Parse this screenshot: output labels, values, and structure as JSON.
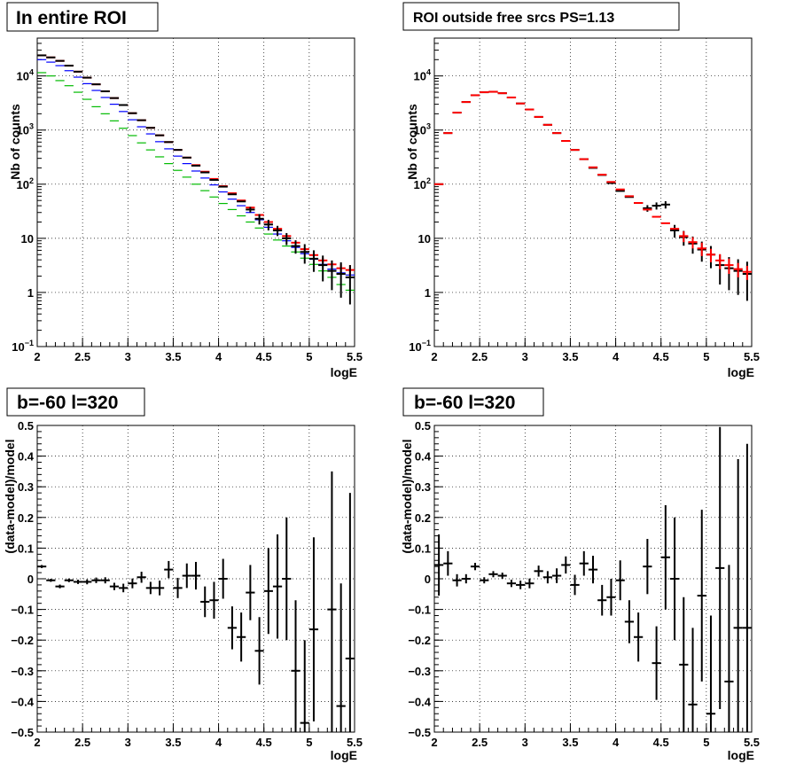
{
  "chart_data": [
    {
      "type": "scatter",
      "title": "In entire ROI",
      "xlabel": "logE",
      "ylabel": "Nb of counts",
      "xlim": [
        2,
        5.5
      ],
      "ylim": [
        0.1,
        50000
      ],
      "yscale": "log",
      "grid": true,
      "x_ticks": [
        "2",
        "2.5",
        "3",
        "3.5",
        "4",
        "4.5",
        "5",
        "5.5"
      ],
      "y_ticks": [
        {
          "value": 0.1,
          "base": "10",
          "exp": "−1"
        },
        {
          "value": 1,
          "label": "1"
        },
        {
          "value": 10,
          "label": "10"
        },
        {
          "value": 100,
          "base": "10",
          "exp": "2"
        },
        {
          "value": 1000,
          "base": "10",
          "exp": "3"
        },
        {
          "value": 10000,
          "base": "10",
          "exp": "4"
        }
      ],
      "series": [
        {
          "color": "#ff0000",
          "x": [
            2.05,
            2.15,
            2.25,
            2.35,
            2.45,
            2.55,
            2.65,
            2.75,
            2.85,
            2.95,
            3.05,
            3.15,
            3.25,
            3.35,
            3.45,
            3.55,
            3.65,
            3.75,
            3.85,
            3.95,
            4.05,
            4.15,
            4.25,
            4.35,
            4.45,
            4.55,
            4.65,
            4.75,
            4.85,
            4.95,
            5.05,
            5.15,
            5.25,
            5.35,
            5.45
          ],
          "y": [
            24000,
            22000,
            19000,
            15500,
            12000,
            9300,
            7000,
            5200,
            3900,
            2900,
            2050,
            1520,
            1100,
            800,
            600,
            430,
            310,
            225,
            170,
            125,
            92,
            68,
            50,
            37,
            27,
            20,
            15,
            11,
            8.3,
            6.3,
            4.9,
            3.9,
            3.3,
            2.8,
            2.6
          ],
          "err": [
            0,
            0,
            0,
            0,
            0,
            0,
            0,
            0,
            0,
            0,
            0,
            0,
            0,
            0,
            0,
            0,
            0,
            0,
            0,
            0,
            0,
            0,
            0,
            0,
            0,
            0,
            0,
            0,
            0.25,
            0.35,
            0.4,
            0.45,
            0.5,
            0.55,
            0.6
          ]
        },
        {
          "color": "#0000ff",
          "x": [
            2.05,
            2.15,
            2.25,
            2.35,
            2.45,
            2.55,
            2.65,
            2.75,
            2.85,
            2.95,
            3.05,
            3.15,
            3.25,
            3.35,
            3.45,
            3.55,
            3.65,
            3.75,
            3.85,
            3.95,
            4.05,
            4.15,
            4.25,
            4.35,
            4.45,
            4.55,
            4.65,
            4.75,
            4.85,
            4.95,
            5.05,
            5.15,
            5.25,
            5.35,
            5.45
          ],
          "y": [
            20000,
            18000,
            15500,
            12500,
            9500,
            7200,
            5400,
            4000,
            3000,
            2200,
            1550,
            1150,
            850,
            610,
            450,
            330,
            240,
            175,
            130,
            97,
            72,
            53,
            40,
            30,
            22,
            16,
            12,
            9,
            6.8,
            5.2,
            4.1,
            3.3,
            2.7,
            2.3,
            2.1
          ],
          "err": [
            0,
            0,
            0,
            0,
            0,
            0,
            0,
            0,
            0,
            0,
            0,
            0,
            0,
            0,
            0,
            0,
            0,
            0,
            0,
            0,
            0,
            0,
            0,
            0,
            0,
            0,
            0,
            0,
            0,
            0,
            0,
            0,
            0,
            0,
            0
          ]
        },
        {
          "color": "#00bb00",
          "x": [
            2.05,
            2.15,
            2.25,
            2.35,
            2.45,
            2.55,
            2.65,
            2.75,
            2.85,
            2.95,
            3.05,
            3.15,
            3.25,
            3.35,
            3.45,
            3.55,
            3.65,
            3.75,
            3.85,
            3.95,
            4.05,
            4.15,
            4.25,
            4.35,
            4.45,
            4.55,
            4.65,
            4.75,
            4.85,
            4.95,
            5.05,
            5.15,
            5.25,
            5.35,
            5.45
          ],
          "y": [
            11500,
            10000,
            8200,
            6600,
            5000,
            3700,
            2700,
            2000,
            1480,
            1080,
            790,
            580,
            430,
            320,
            240,
            180,
            135,
            100,
            76,
            58,
            44,
            34,
            26,
            20,
            15.5,
            12,
            9.3,
            7.2,
            5.6,
            4.3,
            3.3,
            2.5,
            1.9,
            1.4,
            1.1
          ],
          "err": [
            0,
            0,
            0,
            0,
            0,
            0,
            0,
            0,
            0,
            0,
            0,
            0,
            0,
            0,
            0,
            0,
            0,
            0,
            0,
            0,
            0,
            0,
            0,
            0,
            0,
            0,
            0,
            0,
            0,
            0,
            0,
            0,
            0,
            0,
            0
          ]
        },
        {
          "color": "#000000",
          "x": [
            2.05,
            2.15,
            2.25,
            2.35,
            2.45,
            2.55,
            2.65,
            2.75,
            2.85,
            2.95,
            3.05,
            3.15,
            3.25,
            3.35,
            3.45,
            3.55,
            3.65,
            3.75,
            3.85,
            3.95,
            4.05,
            4.15,
            4.25,
            4.35,
            4.45,
            4.55,
            4.65,
            4.75,
            4.85,
            4.95,
            5.05,
            5.15,
            5.25,
            5.35,
            5.45
          ],
          "y": [
            24000,
            22000,
            19000,
            15500,
            12000,
            9300,
            7000,
            5200,
            3900,
            2900,
            2050,
            1520,
            1100,
            800,
            600,
            430,
            310,
            220,
            165,
            120,
            90,
            65,
            48,
            34,
            23,
            18,
            14,
            10,
            7.2,
            5.6,
            4.2,
            3.2,
            2.5,
            2.2,
            1.9
          ],
          "err": [
            0,
            0,
            0,
            0,
            0,
            0,
            0,
            0,
            0,
            0,
            0,
            0,
            0,
            0,
            0,
            0,
            0,
            0,
            0,
            0,
            0,
            0,
            0,
            4,
            5,
            4,
            3,
            2.5,
            2,
            2.2,
            1.8,
            1.6,
            1.4,
            1.4,
            1.3
          ]
        }
      ]
    },
    {
      "type": "scatter",
      "title": "ROI outside free srcs PS=1.13",
      "xlabel": "logE",
      "ylabel": "Nb of counts",
      "xlim": [
        2,
        5.5
      ],
      "ylim": [
        0.1,
        50000
      ],
      "yscale": "log",
      "grid": true,
      "x_ticks": [
        "2",
        "2.5",
        "3",
        "3.5",
        "4",
        "4.5",
        "5",
        "5.5"
      ],
      "y_ticks": [
        {
          "value": 0.1,
          "base": "10",
          "exp": "−1"
        },
        {
          "value": 1,
          "label": "1"
        },
        {
          "value": 10,
          "label": "10"
        },
        {
          "value": 100,
          "base": "10",
          "exp": "2"
        },
        {
          "value": 1000,
          "base": "10",
          "exp": "3"
        },
        {
          "value": 10000,
          "base": "10",
          "exp": "4"
        }
      ],
      "series": [
        {
          "color": "#000000",
          "x": [
            2.05,
            2.15,
            2.25,
            2.35,
            2.45,
            2.55,
            2.65,
            2.75,
            2.85,
            2.95,
            3.05,
            3.15,
            3.25,
            3.35,
            3.45,
            3.55,
            3.65,
            3.75,
            3.85,
            3.95,
            4.05,
            4.15,
            4.25,
            4.35,
            4.45,
            4.55,
            4.65,
            4.75,
            4.85,
            4.95,
            5.05,
            5.15,
            5.25,
            5.35,
            5.45
          ],
          "y": [
            100,
            880,
            2100,
            3300,
            4400,
            5000,
            5100,
            4800,
            4000,
            3100,
            2400,
            1750,
            1250,
            880,
            630,
            430,
            290,
            200,
            148,
            105,
            75,
            58,
            45,
            36,
            40,
            42,
            14,
            10.5,
            8,
            6.2,
            5,
            3.2,
            2.8,
            2.5,
            2.2
          ],
          "err": [
            0,
            0,
            0,
            0,
            0,
            0,
            0,
            0,
            0,
            0,
            0,
            0,
            0,
            0,
            0,
            0,
            0,
            0,
            0,
            0,
            0,
            0,
            0,
            5,
            6,
            6.5,
            3.7,
            3.2,
            2.8,
            2.5,
            2.2,
            1.8,
            1.7,
            1.6,
            1.5
          ]
        },
        {
          "color": "#ff0000",
          "x": [
            2.05,
            2.15,
            2.25,
            2.35,
            2.45,
            2.55,
            2.65,
            2.75,
            2.85,
            2.95,
            3.05,
            3.15,
            3.25,
            3.35,
            3.45,
            3.55,
            3.65,
            3.75,
            3.85,
            3.95,
            4.05,
            4.15,
            4.25,
            4.35,
            4.45,
            4.55,
            4.65,
            4.75,
            4.85,
            4.95,
            5.05,
            5.15,
            5.25,
            5.35,
            5.45
          ],
          "y": [
            100,
            880,
            2100,
            3300,
            4400,
            5000,
            5100,
            4800,
            4000,
            3100,
            2400,
            1750,
            1250,
            880,
            630,
            430,
            290,
            205,
            150,
            110,
            80,
            60,
            45,
            34,
            25,
            19,
            15,
            11,
            8.5,
            6.5,
            5,
            3.9,
            3.2,
            2.7,
            2.4
          ],
          "err": [
            0,
            0,
            0,
            0,
            0,
            0,
            0,
            0,
            0,
            0,
            0,
            0,
            0,
            0,
            0,
            0,
            0,
            0,
            0,
            0,
            0,
            0,
            0,
            0,
            0,
            0,
            0,
            2.5,
            2,
            1.8,
            1.4,
            1.2,
            1,
            0.8,
            0.7
          ]
        }
      ]
    },
    {
      "type": "scatter",
      "title": "b=-60 l=320",
      "xlabel": "logE",
      "ylabel": "(data-model)/model",
      "xlim": [
        2,
        5.5
      ],
      "ylim": [
        -0.5,
        0.5
      ],
      "yscale": "linear",
      "grid": true,
      "x_ticks": [
        "2",
        "2.5",
        "3",
        "3.5",
        "4",
        "4.5",
        "5",
        "5.5"
      ],
      "y_ticks": [
        "−0.5",
        "−0.4",
        "−0.3",
        "−0.2",
        "−0.1",
        "0",
        "0.1",
        "0.2",
        "0.3",
        "0.4",
        "0.5"
      ],
      "series": [
        {
          "color": "#000000",
          "x": [
            2.05,
            2.15,
            2.25,
            2.35,
            2.45,
            2.55,
            2.65,
            2.75,
            2.85,
            2.95,
            3.05,
            3.15,
            3.25,
            3.35,
            3.45,
            3.55,
            3.65,
            3.75,
            3.85,
            3.95,
            4.05,
            4.15,
            4.25,
            4.35,
            4.45,
            4.55,
            4.65,
            4.75,
            4.85,
            4.95,
            5.05,
            5.15,
            5.25,
            5.35,
            5.45
          ],
          "y": [
            0.04,
            -0.005,
            -0.025,
            -0.005,
            -0.01,
            -0.01,
            -0.005,
            -0.005,
            -0.025,
            -0.03,
            -0.015,
            0.005,
            -0.03,
            -0.03,
            0.03,
            -0.03,
            0.01,
            0.01,
            -0.075,
            -0.07,
            0.0,
            -0.16,
            -0.19,
            -0.045,
            -0.235,
            -0.04,
            -0.025,
            -0.0,
            -0.3,
            -0.47,
            -0.165,
            -0.55,
            -0.1,
            -0.415,
            -0.26
          ],
          "err": [
            0.005,
            0.005,
            0.006,
            0.006,
            0.007,
            0.008,
            0.009,
            0.01,
            0.012,
            0.014,
            0.016,
            0.018,
            0.02,
            0.024,
            0.028,
            0.033,
            0.04,
            0.045,
            0.05,
            0.06,
            0.065,
            0.07,
            0.08,
            0.09,
            0.11,
            0.14,
            0.17,
            0.2,
            0.23,
            0.27,
            0.3,
            0.35,
            0.45,
            0.4,
            0.54
          ]
        }
      ]
    },
    {
      "type": "scatter",
      "title": "b=-60 l=320",
      "xlabel": "logE",
      "ylabel": "(data-model)/model",
      "xlim": [
        2,
        5.5
      ],
      "ylim": [
        -0.5,
        0.5
      ],
      "yscale": "linear",
      "grid": true,
      "x_ticks": [
        "2",
        "2.5",
        "3",
        "3.5",
        "4",
        "4.5",
        "5",
        "5.5"
      ],
      "y_ticks": [
        "−0.5",
        "−0.4",
        "−0.3",
        "−0.2",
        "−0.1",
        "0",
        "0.1",
        "0.2",
        "0.3",
        "0.4",
        "0.5"
      ],
      "series": [
        {
          "color": "#000000",
          "x": [
            2.05,
            2.15,
            2.25,
            2.35,
            2.45,
            2.55,
            2.65,
            2.75,
            2.85,
            2.95,
            3.05,
            3.15,
            3.25,
            3.35,
            3.45,
            3.55,
            3.65,
            3.75,
            3.85,
            3.95,
            4.05,
            4.15,
            4.25,
            4.35,
            4.45,
            4.55,
            4.65,
            4.75,
            4.85,
            4.95,
            5.05,
            5.15,
            5.25,
            5.35,
            5.45
          ],
          "y": [
            0.045,
            0.05,
            -0.005,
            0.0,
            0.04,
            -0.005,
            0.015,
            0.01,
            -0.015,
            -0.02,
            -0.015,
            0.025,
            0.005,
            0.01,
            0.045,
            -0.02,
            0.05,
            0.03,
            -0.07,
            -0.06,
            -0.005,
            -0.14,
            -0.19,
            0.04,
            -0.275,
            0.07,
            0.0,
            -0.28,
            -0.41,
            -0.055,
            -0.44,
            0.035,
            -0.335,
            -0.16,
            -0.16
          ],
          "err": [
            0.1,
            0.04,
            0.02,
            0.015,
            0.012,
            0.01,
            0.01,
            0.01,
            0.012,
            0.014,
            0.016,
            0.018,
            0.02,
            0.024,
            0.028,
            0.033,
            0.04,
            0.045,
            0.05,
            0.06,
            0.065,
            0.07,
            0.08,
            0.09,
            0.12,
            0.17,
            0.2,
            0.22,
            0.25,
            0.28,
            0.32,
            0.46,
            0.38,
            0.55,
            0.6
          ]
        }
      ]
    }
  ]
}
